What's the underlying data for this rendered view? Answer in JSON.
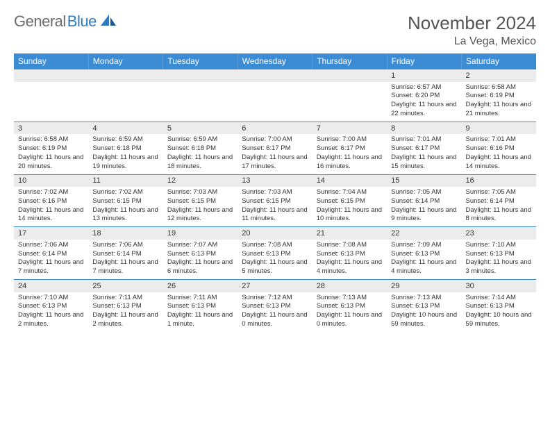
{
  "logo": {
    "part1": "General",
    "part2": "Blue"
  },
  "title": "November 2024",
  "location": "La Vega, Mexico",
  "colors": {
    "header_bg": "#3b8cd4",
    "daynum_bg": "#ececec",
    "border": "#3b8cd4",
    "logo_gray": "#6b6b6b",
    "logo_blue": "#2c7bc4"
  },
  "dayHeaders": [
    "Sunday",
    "Monday",
    "Tuesday",
    "Wednesday",
    "Thursday",
    "Friday",
    "Saturday"
  ],
  "weeks": [
    [
      null,
      null,
      null,
      null,
      null,
      {
        "n": "1",
        "sr": "Sunrise: 6:57 AM",
        "ss": "Sunset: 6:20 PM",
        "dl": "Daylight: 11 hours and 22 minutes."
      },
      {
        "n": "2",
        "sr": "Sunrise: 6:58 AM",
        "ss": "Sunset: 6:19 PM",
        "dl": "Daylight: 11 hours and 21 minutes."
      }
    ],
    [
      {
        "n": "3",
        "sr": "Sunrise: 6:58 AM",
        "ss": "Sunset: 6:19 PM",
        "dl": "Daylight: 11 hours and 20 minutes."
      },
      {
        "n": "4",
        "sr": "Sunrise: 6:59 AM",
        "ss": "Sunset: 6:18 PM",
        "dl": "Daylight: 11 hours and 19 minutes."
      },
      {
        "n": "5",
        "sr": "Sunrise: 6:59 AM",
        "ss": "Sunset: 6:18 PM",
        "dl": "Daylight: 11 hours and 18 minutes."
      },
      {
        "n": "6",
        "sr": "Sunrise: 7:00 AM",
        "ss": "Sunset: 6:17 PM",
        "dl": "Daylight: 11 hours and 17 minutes."
      },
      {
        "n": "7",
        "sr": "Sunrise: 7:00 AM",
        "ss": "Sunset: 6:17 PM",
        "dl": "Daylight: 11 hours and 16 minutes."
      },
      {
        "n": "8",
        "sr": "Sunrise: 7:01 AM",
        "ss": "Sunset: 6:17 PM",
        "dl": "Daylight: 11 hours and 15 minutes."
      },
      {
        "n": "9",
        "sr": "Sunrise: 7:01 AM",
        "ss": "Sunset: 6:16 PM",
        "dl": "Daylight: 11 hours and 14 minutes."
      }
    ],
    [
      {
        "n": "10",
        "sr": "Sunrise: 7:02 AM",
        "ss": "Sunset: 6:16 PM",
        "dl": "Daylight: 11 hours and 14 minutes."
      },
      {
        "n": "11",
        "sr": "Sunrise: 7:02 AM",
        "ss": "Sunset: 6:15 PM",
        "dl": "Daylight: 11 hours and 13 minutes."
      },
      {
        "n": "12",
        "sr": "Sunrise: 7:03 AM",
        "ss": "Sunset: 6:15 PM",
        "dl": "Daylight: 11 hours and 12 minutes."
      },
      {
        "n": "13",
        "sr": "Sunrise: 7:03 AM",
        "ss": "Sunset: 6:15 PM",
        "dl": "Daylight: 11 hours and 11 minutes."
      },
      {
        "n": "14",
        "sr": "Sunrise: 7:04 AM",
        "ss": "Sunset: 6:15 PM",
        "dl": "Daylight: 11 hours and 10 minutes."
      },
      {
        "n": "15",
        "sr": "Sunrise: 7:05 AM",
        "ss": "Sunset: 6:14 PM",
        "dl": "Daylight: 11 hours and 9 minutes."
      },
      {
        "n": "16",
        "sr": "Sunrise: 7:05 AM",
        "ss": "Sunset: 6:14 PM",
        "dl": "Daylight: 11 hours and 8 minutes."
      }
    ],
    [
      {
        "n": "17",
        "sr": "Sunrise: 7:06 AM",
        "ss": "Sunset: 6:14 PM",
        "dl": "Daylight: 11 hours and 7 minutes."
      },
      {
        "n": "18",
        "sr": "Sunrise: 7:06 AM",
        "ss": "Sunset: 6:14 PM",
        "dl": "Daylight: 11 hours and 7 minutes."
      },
      {
        "n": "19",
        "sr": "Sunrise: 7:07 AM",
        "ss": "Sunset: 6:13 PM",
        "dl": "Daylight: 11 hours and 6 minutes."
      },
      {
        "n": "20",
        "sr": "Sunrise: 7:08 AM",
        "ss": "Sunset: 6:13 PM",
        "dl": "Daylight: 11 hours and 5 minutes."
      },
      {
        "n": "21",
        "sr": "Sunrise: 7:08 AM",
        "ss": "Sunset: 6:13 PM",
        "dl": "Daylight: 11 hours and 4 minutes."
      },
      {
        "n": "22",
        "sr": "Sunrise: 7:09 AM",
        "ss": "Sunset: 6:13 PM",
        "dl": "Daylight: 11 hours and 4 minutes."
      },
      {
        "n": "23",
        "sr": "Sunrise: 7:10 AM",
        "ss": "Sunset: 6:13 PM",
        "dl": "Daylight: 11 hours and 3 minutes."
      }
    ],
    [
      {
        "n": "24",
        "sr": "Sunrise: 7:10 AM",
        "ss": "Sunset: 6:13 PM",
        "dl": "Daylight: 11 hours and 2 minutes."
      },
      {
        "n": "25",
        "sr": "Sunrise: 7:11 AM",
        "ss": "Sunset: 6:13 PM",
        "dl": "Daylight: 11 hours and 2 minutes."
      },
      {
        "n": "26",
        "sr": "Sunrise: 7:11 AM",
        "ss": "Sunset: 6:13 PM",
        "dl": "Daylight: 11 hours and 1 minute."
      },
      {
        "n": "27",
        "sr": "Sunrise: 7:12 AM",
        "ss": "Sunset: 6:13 PM",
        "dl": "Daylight: 11 hours and 0 minutes."
      },
      {
        "n": "28",
        "sr": "Sunrise: 7:13 AM",
        "ss": "Sunset: 6:13 PM",
        "dl": "Daylight: 11 hours and 0 minutes."
      },
      {
        "n": "29",
        "sr": "Sunrise: 7:13 AM",
        "ss": "Sunset: 6:13 PM",
        "dl": "Daylight: 10 hours and 59 minutes."
      },
      {
        "n": "30",
        "sr": "Sunrise: 7:14 AM",
        "ss": "Sunset: 6:13 PM",
        "dl": "Daylight: 10 hours and 59 minutes."
      }
    ]
  ]
}
